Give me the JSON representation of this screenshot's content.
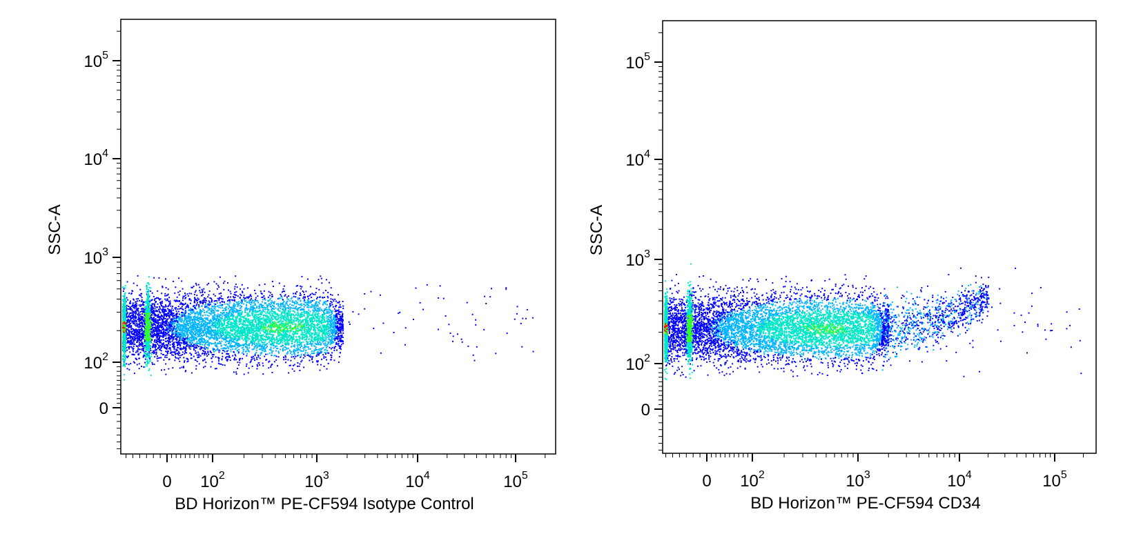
{
  "chart_data": [
    {
      "type": "scatter",
      "style": "density-colored flow cytometry dot plot",
      "xlabel": "BD Horizon™ PE-CF594 Isotype Control",
      "ylabel": "SSC-A",
      "x_scale": "biexponential",
      "y_scale": "biexponential",
      "x_ticks": [
        {
          "value": 0,
          "base": "0",
          "exp": ""
        },
        {
          "value": 100,
          "base": "10",
          "exp": "2"
        },
        {
          "value": 1000,
          "base": "10",
          "exp": "3"
        },
        {
          "value": 10000,
          "base": "10",
          "exp": "4"
        },
        {
          "value": 100000,
          "base": "10",
          "exp": "5"
        }
      ],
      "y_ticks": [
        {
          "value": 0,
          "base": "0",
          "exp": ""
        },
        {
          "value": 100,
          "base": "10",
          "exp": "2"
        },
        {
          "value": 1000,
          "base": "10",
          "exp": "3"
        },
        {
          "value": 10000,
          "base": "10",
          "exp": "4"
        },
        {
          "value": 100000,
          "base": "10",
          "exp": "5"
        }
      ],
      "xlim": [
        -200,
        250000
      ],
      "ylim": [
        -200,
        250000
      ],
      "grid": false,
      "legend": "none",
      "density_colors": [
        "#0000ff",
        "#00b4ff",
        "#00e6c8",
        "#32ff32",
        "#ff0000"
      ],
      "population": {
        "x_range": [
          -150,
          1800
        ],
        "y_center": 220,
        "y_range": [
          90,
          600
        ],
        "x_peak": 450,
        "scattered_x_max": 150000
      }
    },
    {
      "type": "scatter",
      "style": "density-colored flow cytometry dot plot",
      "xlabel": "BD Horizon™ PE-CF594 CD34",
      "ylabel": "SSC-A",
      "x_scale": "biexponential",
      "y_scale": "biexponential",
      "x_ticks": [
        {
          "value": 0,
          "base": "0",
          "exp": ""
        },
        {
          "value": 100,
          "base": "10",
          "exp": "2"
        },
        {
          "value": 1000,
          "base": "10",
          "exp": "3"
        },
        {
          "value": 10000,
          "base": "10",
          "exp": "4"
        },
        {
          "value": 100000,
          "base": "10",
          "exp": "5"
        }
      ],
      "y_ticks": [
        {
          "value": 0,
          "base": "0",
          "exp": ""
        },
        {
          "value": 100,
          "base": "10",
          "exp": "2"
        },
        {
          "value": 1000,
          "base": "10",
          "exp": "3"
        },
        {
          "value": 10000,
          "base": "10",
          "exp": "4"
        },
        {
          "value": 100000,
          "base": "10",
          "exp": "5"
        }
      ],
      "xlim": [
        -200,
        250000
      ],
      "ylim": [
        -200,
        250000
      ],
      "grid": false,
      "legend": "none",
      "density_colors": [
        "#0000ff",
        "#00b4ff",
        "#00e6c8",
        "#32ff32",
        "#ff0000"
      ],
      "population": {
        "x_range": [
          -150,
          2000
        ],
        "y_center": 220,
        "y_range": [
          90,
          650
        ],
        "x_peak": 500,
        "positive_tail_x_max": 20000,
        "scattered_x_max": 200000
      }
    }
  ]
}
